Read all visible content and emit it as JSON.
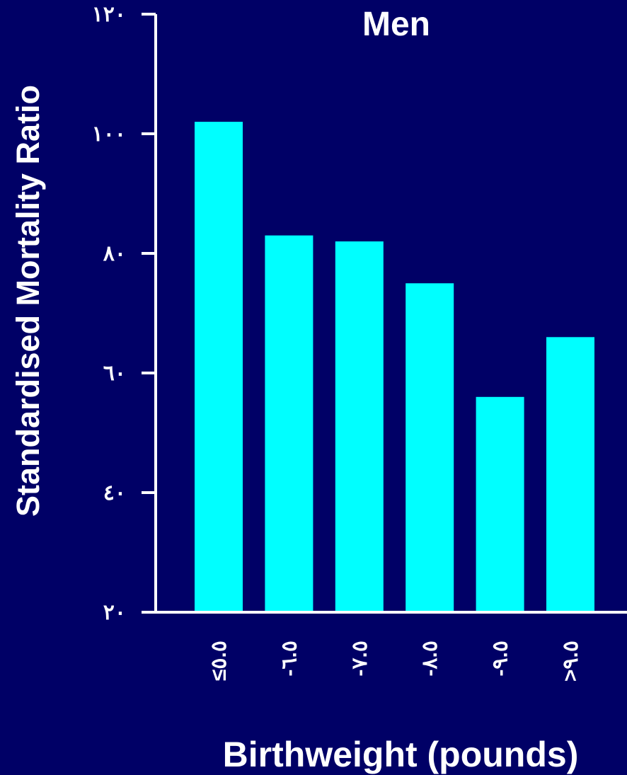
{
  "colors": {
    "background": "#000066",
    "bar": "#00ffff",
    "axis": "#ffffff",
    "text": "#ffffff"
  },
  "chart_data": {
    "type": "bar",
    "title": "Men",
    "xlabel": "Birthweight (pounds)",
    "ylabel": "Standardised Mortality Ratio",
    "ylim": [
      20,
      120
    ],
    "yticks": [
      20,
      40,
      60,
      80,
      100,
      120
    ],
    "ytick_labels": [
      "٢٠",
      "٤٠",
      "٦٠",
      "٨٠",
      "١٠٠",
      "١٢٠"
    ],
    "categories": [
      "≤٥.٥",
      "-٦.٥",
      "-٧.٥",
      "-٨.٥",
      "-٩.٥",
      ">٩.٥"
    ],
    "values": [
      102,
      83,
      82,
      75,
      56,
      66
    ],
    "grid": false,
    "legend": "none"
  }
}
